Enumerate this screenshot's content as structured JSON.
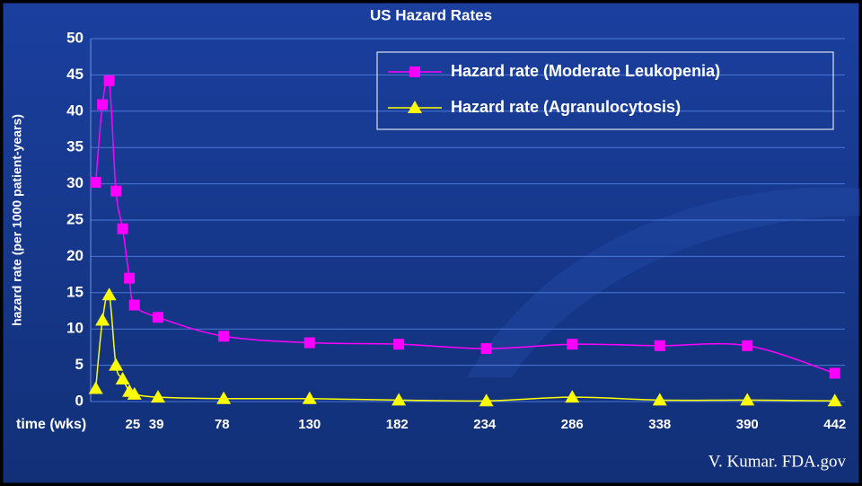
{
  "chart_data": {
    "type": "line",
    "title": "US Hazard Rates",
    "y_label": "hazard rate (per 1000 patient-years)",
    "x_label": "time (wks)",
    "x": [
      3,
      7,
      11,
      15,
      19,
      23,
      26,
      40,
      79,
      130,
      183,
      235,
      286,
      338,
      390,
      442
    ],
    "series": [
      {
        "name": "Hazard rate (Moderate Leukopenia)",
        "color": "#ff00ff",
        "marker": "square",
        "values": [
          30.2,
          40.9,
          44.2,
          29,
          23.8,
          17,
          13.3,
          11.6,
          9,
          8.1,
          7.9,
          7.3,
          7.9,
          7.7,
          7.7,
          3.9
        ]
      },
      {
        "name": "Hazard rate (Agranulocytosis)",
        "color": "#ffff00",
        "marker": "triangle",
        "values": [
          1.8,
          11.2,
          14.7,
          5,
          3.1,
          1.4,
          1.0,
          0.6,
          0.4,
          0.4,
          0.2,
          0.1,
          0.6,
          0.2,
          0.2,
          0.1
        ]
      }
    ],
    "xlim": [
      0,
      448
    ],
    "xticks": [
      25,
      39,
      78,
      130,
      182,
      234,
      286,
      338,
      390,
      442
    ],
    "ylim": [
      0,
      50
    ],
    "yticks": [
      0,
      5,
      10,
      15,
      20,
      25,
      30,
      35,
      40,
      45,
      50
    ],
    "grid": true,
    "legend": "top-right",
    "annotation": "V. Kumar. FDA.gov"
  }
}
